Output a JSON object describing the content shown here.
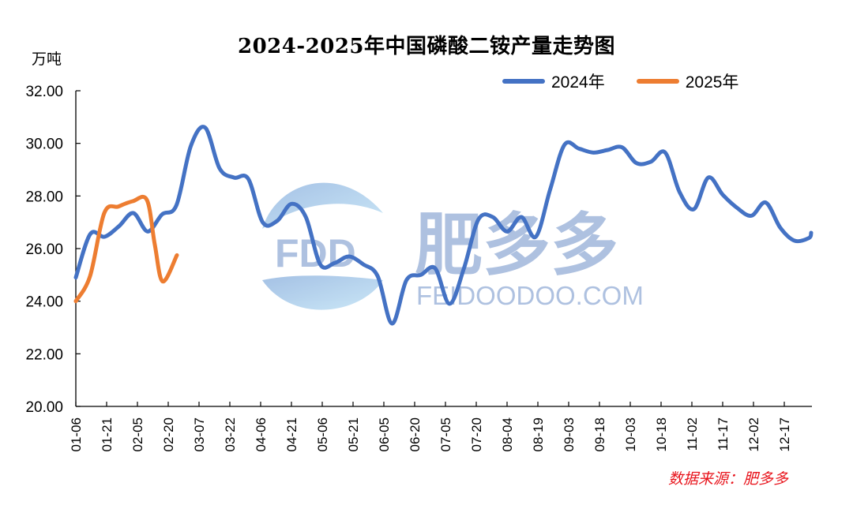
{
  "chart_data": {
    "type": "line",
    "title": "2024-2025年中国磷酸二铵产量走势图",
    "ylabel": "万吨",
    "xlabel": "",
    "ylim": [
      20,
      32
    ],
    "yticks": [
      "20.00",
      "22.00",
      "24.00",
      "26.00",
      "28.00",
      "30.00",
      "32.00"
    ],
    "xticks": [
      "01-06",
      "01-21",
      "02-05",
      "02-20",
      "03-07",
      "03-22",
      "04-06",
      "04-21",
      "05-06",
      "05-21",
      "06-05",
      "06-20",
      "07-05",
      "07-20",
      "08-04",
      "08-19",
      "09-03",
      "09-18",
      "10-03",
      "10-18",
      "11-02",
      "11-17",
      "12-02",
      "12-17"
    ],
    "grid": false,
    "legend_position": "top-right",
    "series": [
      {
        "name": "2024年",
        "color": "#4472c4",
        "values": [
          24.9,
          26.55,
          26.45,
          26.85,
          27.35,
          26.65,
          27.3,
          27.65,
          29.9,
          30.6,
          29.05,
          28.7,
          28.65,
          27.0,
          27.05,
          27.7,
          27.2,
          25.4,
          25.45,
          25.7,
          25.4,
          24.95,
          23.15,
          24.8,
          25.0,
          25.25,
          23.9,
          25.25,
          27.1,
          27.2,
          26.65,
          27.2,
          26.45,
          28.25,
          29.95,
          29.8,
          29.65,
          29.75,
          29.85,
          29.25,
          29.3,
          29.65,
          28.15,
          27.5,
          28.7,
          28.05,
          27.55,
          27.25,
          27.75,
          26.8,
          26.3,
          26.4,
          26.6
        ]
      },
      {
        "name": "2025年",
        "color": "#ed7d31",
        "values": [
          24.0,
          24.95,
          27.35,
          27.6,
          27.8,
          27.85,
          26.15,
          24.75,
          25.75
        ]
      }
    ]
  },
  "header": {
    "title": "2024-2025年中国磷酸二铵产量走势图",
    "unit": "万吨"
  },
  "legend": {
    "items": [
      {
        "label": "2024年",
        "color": "#4472c4"
      },
      {
        "label": "2025年",
        "color": "#ed7d31"
      }
    ]
  },
  "watermark": {
    "logo_text": "FDD",
    "brand_cn": "肥多多",
    "domain": "FEIDOODOO.COM"
  },
  "footer": {
    "source": "数据来源：肥多多"
  }
}
